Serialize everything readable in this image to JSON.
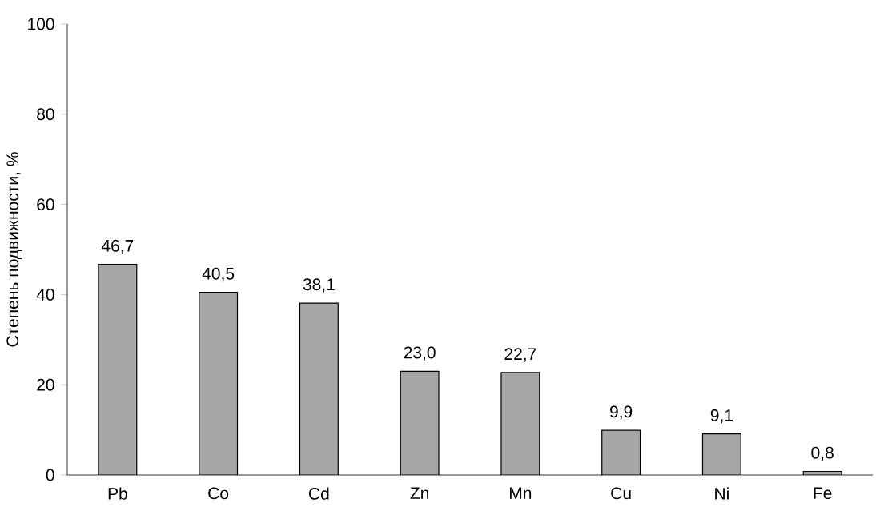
{
  "chart_data": {
    "type": "bar",
    "ylabel": "Степень подвижности, %",
    "categories": [
      "Pb",
      "Co",
      "Cd",
      "Zn",
      "Mn",
      "Cu",
      "Ni",
      "Fe"
    ],
    "values": [
      46.7,
      40.5,
      38.1,
      23.0,
      22.7,
      9.9,
      9.1,
      0.8
    ],
    "value_labels": [
      "46,7",
      "40,5",
      "38,1",
      "23,0",
      "22,7",
      "9,9",
      "9,1",
      "0,8"
    ],
    "color": "#a6a6a6",
    "ylim": [
      0,
      100
    ],
    "yticks": [
      0,
      20,
      40,
      60,
      80,
      100
    ],
    "grid": false
  }
}
